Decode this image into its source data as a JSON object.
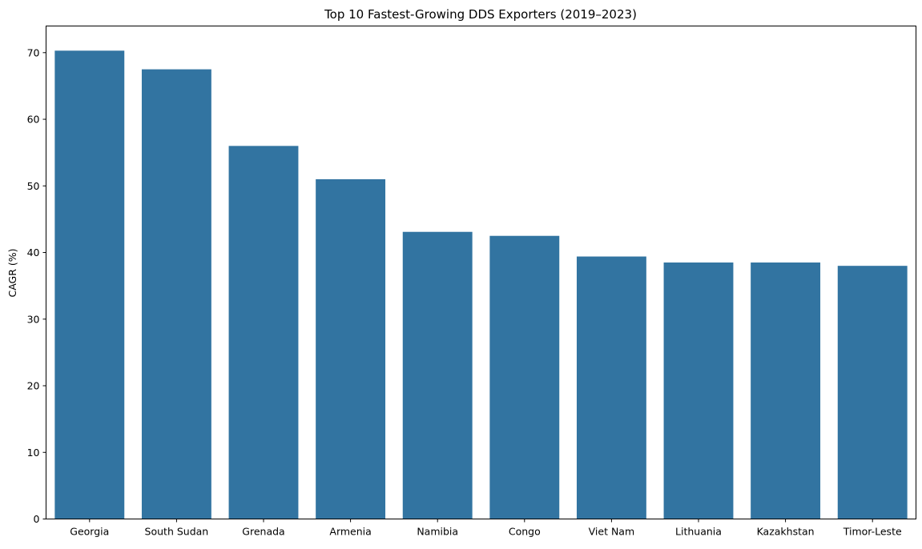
{
  "chart_data": {
    "type": "bar",
    "title": "Top 10 Fastest-Growing DDS Exporters (2019–2023)",
    "xlabel": "",
    "ylabel": "CAGR (%)",
    "categories": [
      "Georgia",
      "South Sudan",
      "Grenada",
      "Armenia",
      "Namibia",
      "Congo",
      "Viet Nam",
      "Lithuania",
      "Kazakhstan",
      "Timor-Leste"
    ],
    "values": [
      70.3,
      67.5,
      56.0,
      51.0,
      43.1,
      42.5,
      39.4,
      38.5,
      38.5,
      38.0
    ],
    "ylim": [
      0,
      74
    ],
    "yticks": [
      0,
      10,
      20,
      30,
      40,
      50,
      60,
      70
    ],
    "grid": false,
    "bar_color": "#3274a1"
  }
}
